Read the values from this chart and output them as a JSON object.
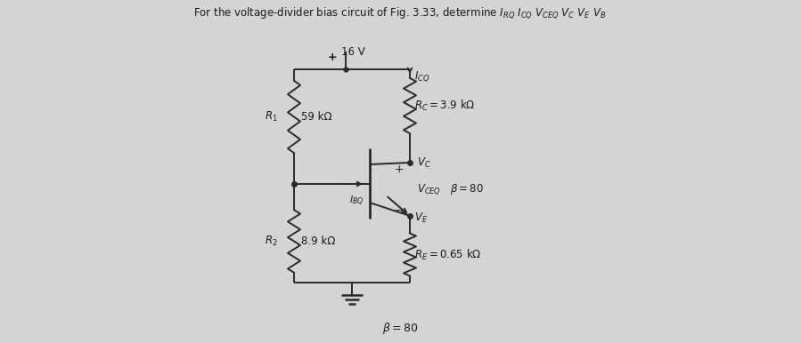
{
  "title": "For the voltage-divider bias circuit of Fig. 3.33, determine $I_{RQ}$ $I_{CQ}$ $V_{CEQ}$ $V_C$ $V_E$ $V_B$",
  "bg_color": "#d4d4d4",
  "voltage": "16 V",
  "R1_label": "$R_1$",
  "R1_value": "59 kΩ",
  "R2_label": "$R_2$",
  "R2_value": "8.9 kΩ",
  "RC_label": "$R_C = 3.9$ kΩ",
  "RE_label": "$R_E = 0.65$ kΩ",
  "ICQ_label": "$I_{CQ}$",
  "IBQ_label": "$I_{BQ}$",
  "VC_label": "$V_C$",
  "VE_label": "$V_E$",
  "VCEQ_label": "$V_{CEQ}$",
  "beta_label": "$\\beta = 80$",
  "beta_bottom": "$\\beta = 80$",
  "text_color": "#1a1a1a",
  "line_color": "#2a2a2a",
  "line_width": 1.4,
  "figsize": [
    8.99,
    3.86
  ],
  "dpi": 100
}
